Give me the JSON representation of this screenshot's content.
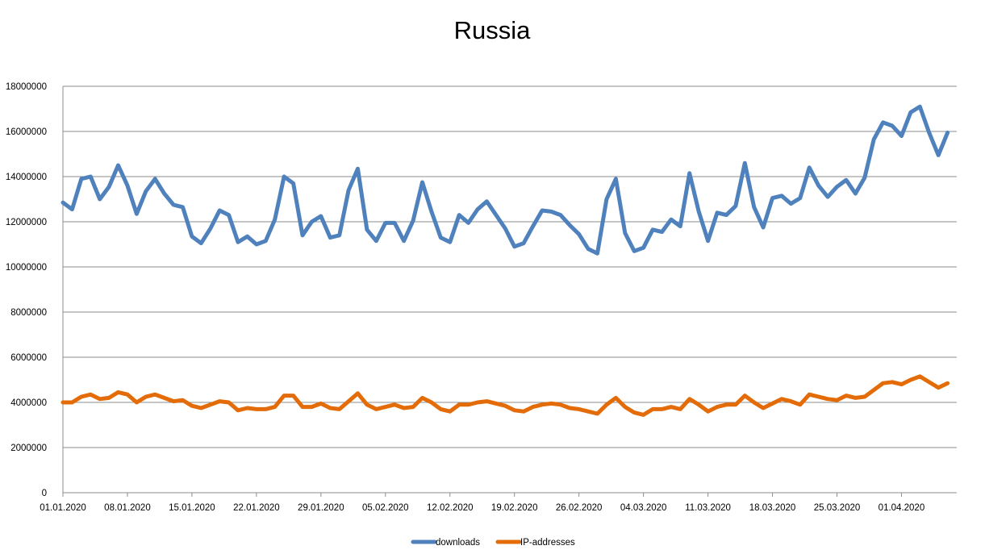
{
  "chart_data": {
    "type": "line",
    "title": "Russia",
    "xlabel": "",
    "ylabel": "",
    "x_start": "01.01.2020",
    "x_end": "07.04.2020",
    "x_tick_labels": [
      "01.01.2020",
      "08.01.2020",
      "15.01.2020",
      "22.01.2020",
      "29.01.2020",
      "05.02.2020",
      "12.02.2020",
      "19.02.2020",
      "26.02.2020",
      "04.03.2020",
      "11.03.2020",
      "18.03.2020",
      "25.03.2020",
      "01.04.2020"
    ],
    "y_tick_labels": [
      "0",
      "2000000",
      "4000000",
      "6000000",
      "8000000",
      "10000000",
      "12000000",
      "14000000",
      "16000000",
      "18000000"
    ],
    "ylim": [
      0,
      18000000
    ],
    "grid": true,
    "legend_position": "bottom",
    "series": [
      {
        "name": "downloads",
        "color": "#4f81bd",
        "values": [
          12850000,
          12550000,
          13900000,
          14000000,
          13000000,
          13550000,
          14500000,
          13600000,
          12350000,
          13350000,
          13900000,
          13250000,
          12750000,
          12650000,
          11350000,
          11050000,
          11700000,
          12500000,
          12300000,
          11100000,
          11350000,
          11000000,
          11150000,
          12100000,
          14000000,
          13700000,
          11400000,
          12000000,
          12250000,
          11300000,
          11400000,
          13400000,
          14350000,
          11650000,
          11150000,
          11950000,
          11950000,
          11150000,
          12050000,
          13750000,
          12450000,
          11300000,
          11100000,
          12300000,
          11950000,
          12550000,
          12900000,
          12300000,
          11700000,
          10900000,
          11050000,
          11800000,
          12500000,
          12450000,
          12300000,
          11850000,
          11450000,
          10800000,
          10600000,
          13000000,
          13900000,
          11500000,
          10700000,
          10850000,
          11650000,
          11550000,
          12100000,
          11800000,
          14150000,
          12450000,
          11150000,
          12400000,
          12300000,
          12700000,
          14600000,
          12650000,
          11750000,
          13050000,
          13150000,
          12800000,
          13050000,
          14400000,
          13600000,
          13100000,
          13550000,
          13850000,
          13250000,
          13950000,
          15650000,
          16400000,
          16250000,
          15800000,
          16850000,
          17100000,
          15950000,
          14950000,
          15950000
        ]
      },
      {
        "name": "IP-addresses",
        "color": "#e36c09",
        "values": [
          4000000,
          4000000,
          4250000,
          4350000,
          4150000,
          4200000,
          4450000,
          4350000,
          4000000,
          4250000,
          4350000,
          4200000,
          4050000,
          4100000,
          3850000,
          3750000,
          3900000,
          4050000,
          4000000,
          3650000,
          3750000,
          3700000,
          3700000,
          3800000,
          4300000,
          4300000,
          3800000,
          3800000,
          3950000,
          3750000,
          3700000,
          4050000,
          4400000,
          3900000,
          3700000,
          3800000,
          3900000,
          3750000,
          3800000,
          4200000,
          4000000,
          3700000,
          3600000,
          3900000,
          3900000,
          4000000,
          4050000,
          3950000,
          3850000,
          3650000,
          3600000,
          3800000,
          3900000,
          3950000,
          3900000,
          3750000,
          3700000,
          3600000,
          3500000,
          3900000,
          4200000,
          3800000,
          3550000,
          3450000,
          3700000,
          3700000,
          3800000,
          3700000,
          4150000,
          3900000,
          3600000,
          3800000,
          3900000,
          3900000,
          4300000,
          4000000,
          3750000,
          3950000,
          4150000,
          4050000,
          3900000,
          4350000,
          4250000,
          4150000,
          4100000,
          4300000,
          4200000,
          4250000,
          4550000,
          4850000,
          4900000,
          4800000,
          5000000,
          5150000,
          4900000,
          4650000,
          4850000
        ]
      }
    ]
  }
}
